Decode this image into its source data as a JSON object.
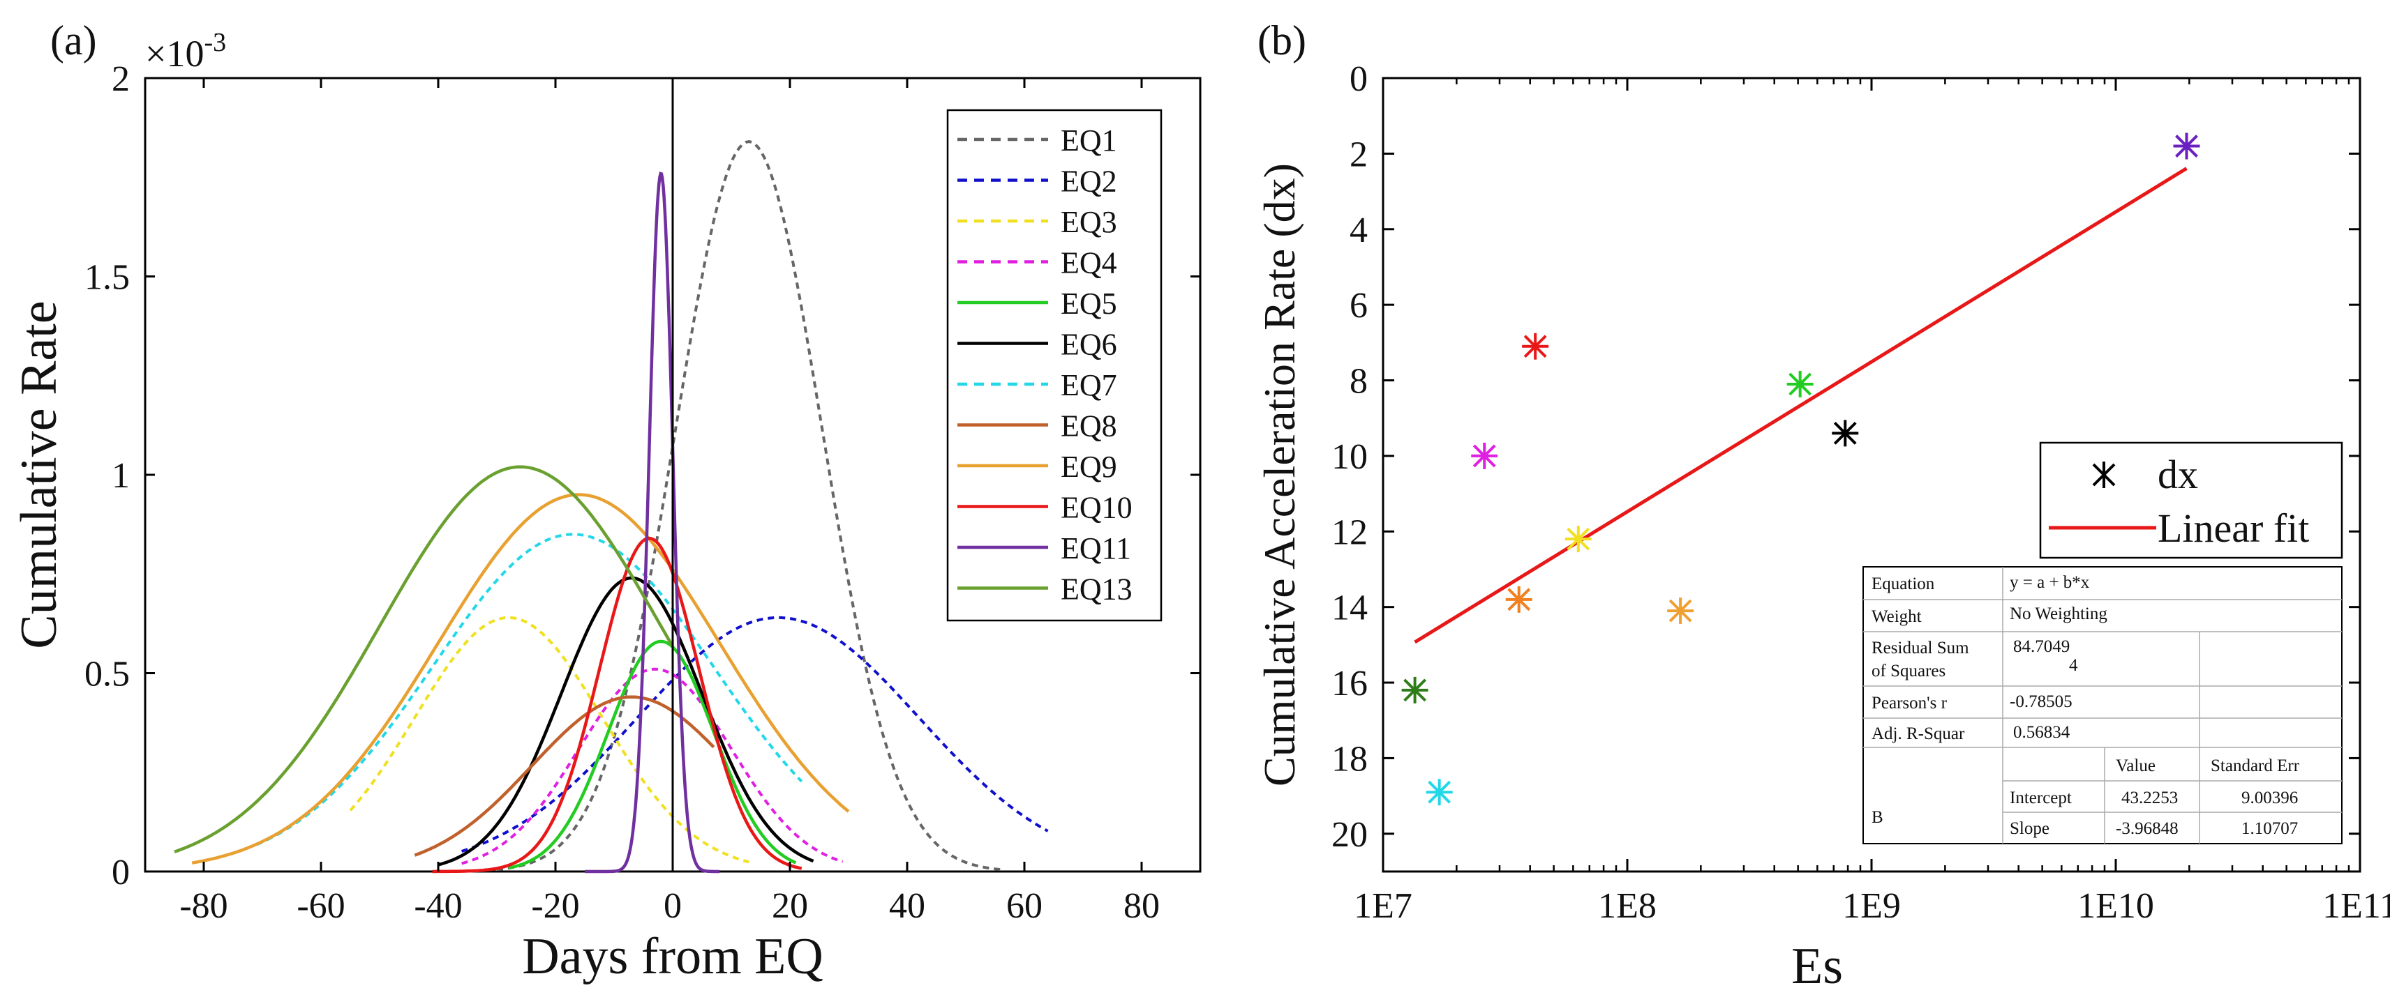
{
  "chart_data": [
    {
      "panel_label": "(a)",
      "type": "line",
      "title": "",
      "xlabel": "Days from EQ",
      "ylabel": "Cumulative Rate",
      "y_multiplier": "×10",
      "y_exponent": "-3",
      "xlim": [
        -90,
        90
      ],
      "ylim": [
        0,
        2
      ],
      "x_ticks": [
        -80,
        -60,
        -40,
        -20,
        0,
        20,
        40,
        60,
        80
      ],
      "x_tick_labels": [
        "-80",
        "-60",
        "-40",
        "-20",
        "0",
        "20",
        "40",
        "60",
        "80"
      ],
      "y_ticks": [
        0,
        0.5,
        1,
        1.5,
        2
      ],
      "y_tick_labels": [
        "0",
        "0.5",
        "1",
        "1.5",
        "2"
      ],
      "vertical_reference_line_x": 0,
      "legend_position": "top-right",
      "series": [
        {
          "name": "EQ1",
          "color": "#666666",
          "dash": "dashed",
          "peak_x": 13,
          "peak_y": 1.84,
          "sigma": 12.5,
          "x_range": [
            -30,
            56
          ]
        },
        {
          "name": "EQ2",
          "color": "#1010cc",
          "dash": "dashed",
          "peak_x": 18,
          "peak_y": 0.64,
          "sigma": 24,
          "x_range": [
            -36,
            64
          ]
        },
        {
          "name": "EQ3",
          "color": "#f0e020",
          "dash": "dashed",
          "peak_x": -28,
          "peak_y": 0.64,
          "sigma": 16,
          "x_range": [
            -55,
            13
          ]
        },
        {
          "name": "EQ4",
          "color": "#e020e0",
          "dash": "dashed",
          "peak_x": -3,
          "peak_y": 0.51,
          "sigma": 13,
          "x_range": [
            -36,
            29
          ]
        },
        {
          "name": "EQ5",
          "color": "#22cc22",
          "dash": "solid",
          "peak_x": -2,
          "peak_y": 0.58,
          "sigma": 9,
          "x_range": [
            -28,
            21
          ]
        },
        {
          "name": "EQ6",
          "color": "#000000",
          "dash": "solid",
          "peak_x": -7,
          "peak_y": 0.74,
          "sigma": 12,
          "x_range": [
            -40,
            24
          ]
        },
        {
          "name": "EQ7",
          "color": "#22d8e8",
          "dash": "dashed",
          "peak_x": -17,
          "peak_y": 0.85,
          "sigma": 24,
          "x_range": [
            -71,
            22
          ]
        },
        {
          "name": "EQ8",
          "color": "#c0602a",
          "dash": "solid",
          "peak_x": -7,
          "peak_y": 0.44,
          "sigma": 17,
          "x_range": [
            -44,
            7
          ]
        },
        {
          "name": "EQ9",
          "color": "#e8a030",
          "dash": "solid",
          "peak_x": -16,
          "peak_y": 0.95,
          "sigma": 24,
          "x_range": [
            -82,
            30
          ]
        },
        {
          "name": "EQ10",
          "color": "#e81818",
          "dash": "solid",
          "peak_x": -4,
          "peak_y": 0.84,
          "sigma": 8.5,
          "x_range": [
            -41,
            22
          ]
        },
        {
          "name": "EQ11",
          "color": "#7030a0",
          "dash": "solid",
          "peak_x": -2,
          "peak_y": 1.76,
          "sigma": 2.0,
          "x_range": [
            -15,
            8
          ]
        },
        {
          "name": "EQ13",
          "color": "#6aa030",
          "dash": "solid",
          "peak_x": -26,
          "peak_y": 1.02,
          "sigma": 24,
          "x_range": [
            -85,
            0
          ]
        }
      ]
    },
    {
      "panel_label": "(b)",
      "type": "scatter",
      "title": "",
      "xlabel": "Es",
      "ylabel": "Cumulative Acceleration Rate (dx)",
      "x_scale": "log",
      "xlim": [
        10000000.0,
        100000000000.0
      ],
      "x_ticks": [
        10000000.0,
        100000000.0,
        1000000000.0,
        10000000000.0,
        100000000000.0
      ],
      "x_tick_labels": [
        "1E7",
        "1E8",
        "1E9",
        "1E10",
        "1E11"
      ],
      "ylim": [
        21,
        0
      ],
      "y_inverted": true,
      "y_ticks": [
        0,
        2,
        4,
        6,
        8,
        10,
        12,
        14,
        16,
        18,
        20
      ],
      "y_tick_labels": [
        "0",
        "2",
        "4",
        "6",
        "8",
        "10",
        "12",
        "14",
        "16",
        "18",
        "20"
      ],
      "points": [
        {
          "x": 13500000.0,
          "y": 16.2,
          "color": "#2e7d1a"
        },
        {
          "x": 17000000.0,
          "y": 18.9,
          "color": "#22d8e8"
        },
        {
          "x": 26000000.0,
          "y": 10.0,
          "color": "#e020e0"
        },
        {
          "x": 36000000.0,
          "y": 13.8,
          "color": "#f08020"
        },
        {
          "x": 42000000.0,
          "y": 7.1,
          "color": "#e81818"
        },
        {
          "x": 63000000.0,
          "y": 12.2,
          "color": "#f0e020"
        },
        {
          "x": 165000000.0,
          "y": 14.1,
          "color": "#f0a030"
        },
        {
          "x": 510000000.0,
          "y": 8.1,
          "color": "#22cc22"
        },
        {
          "x": 780000000.0,
          "y": 9.4,
          "color": "#000000"
        },
        {
          "x": 19500000000.0,
          "y": 1.8,
          "color": "#6a20c0"
        }
      ],
      "fit_line": {
        "x_from": 13500000.0,
        "x_to": 19500000000.0,
        "color": "#e81818"
      },
      "legend_position": "top-right",
      "legend": [
        {
          "label": "dx",
          "kind": "marker",
          "color": "#000000"
        },
        {
          "label": "Linear fit",
          "kind": "line",
          "color": "#e81818"
        }
      ],
      "stats_table": {
        "equation_label": "Equation",
        "equation_value": "y = a + b*x",
        "weight_label": "Weight",
        "weight_value": "No Weighting",
        "rss_label_1": "Residual Sum",
        "rss_label_2": "of Squares",
        "rss_value_1": "84.7049",
        "rss_value_2": "4",
        "pearson_label": "Pearson's r",
        "pearson_value": "-0.78505",
        "adjr_label": "Adj. R-Squar",
        "adjr_value": "0.56834",
        "value_header": "Value",
        "stderr_header": "Standard Err",
        "group_label": "B",
        "intercept_label": "Intercept",
        "intercept_value": "43.2253",
        "intercept_err": "9.00396",
        "slope_label": "Slope",
        "slope_value": "-3.96848",
        "slope_err": "1.10707"
      }
    }
  ]
}
